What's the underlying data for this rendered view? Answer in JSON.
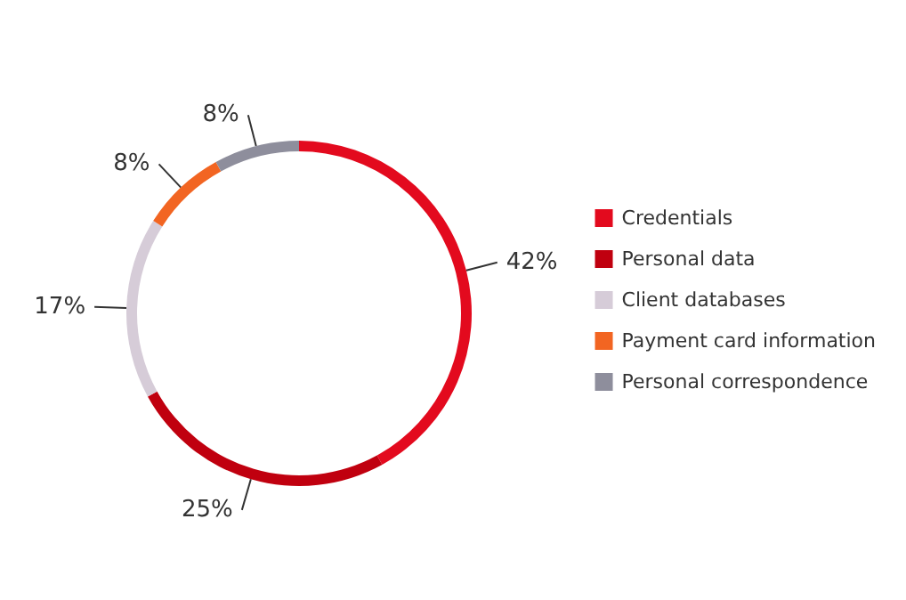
{
  "chart_data": {
    "type": "donut",
    "categories": [
      "Credentials",
      "Personal data",
      "Client databases",
      "Payment card information",
      "Personal correspondence"
    ],
    "values": [
      42,
      25,
      17,
      8,
      8
    ],
    "colors": [
      "#e30a1e",
      "#c0000f",
      "#d6ccd8",
      "#f26522",
      "#8e8e9c"
    ],
    "value_labels": [
      "42%",
      "25%",
      "17%",
      "8%",
      "8%"
    ],
    "legend": "right"
  }
}
